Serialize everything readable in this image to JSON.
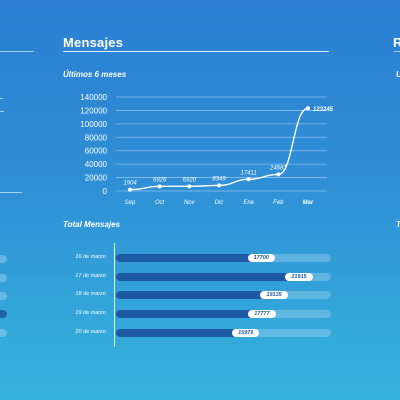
{
  "panel": {
    "title": "Mensajes",
    "chart_subtitle": "Últimos 6 meses",
    "bars_subtitle": "Total Mensajes"
  },
  "right_panel": {
    "title_fragment": "R",
    "subtitle_fragment": "U",
    "bars_fragment": "T"
  },
  "chart_data": [
    {
      "type": "line",
      "title": "Últimos 6 meses",
      "categories": [
        "Sep",
        "Oct",
        "Nov",
        "Dic",
        "Ene",
        "Feb",
        "Mar"
      ],
      "values": [
        1904,
        6926,
        6920,
        8349,
        17411,
        24681,
        123245
      ],
      "value_labels": [
        "1904",
        "6926",
        "6920",
        "8349",
        "17411",
        "24681",
        "123245"
      ],
      "y_ticks": [
        "140000",
        "120000",
        "100000",
        "80000",
        "60000",
        "40000",
        "20000",
        "0"
      ],
      "ylim": [
        0,
        140000
      ],
      "grid": true,
      "highlight_category": "Mar"
    },
    {
      "type": "bar",
      "title": "Total Mensajes",
      "orientation": "horizontal",
      "categories": [
        "16 de marzo",
        "17 de marzo",
        "18 de marzo",
        "19 de marzo",
        "20 de marzo"
      ],
      "values": [
        17700,
        21915,
        19135,
        17777,
        15976
      ],
      "value_labels": [
        "17700",
        "21915",
        "19135",
        "17777",
        "15976"
      ],
      "xlim": [
        0,
        24000
      ]
    }
  ],
  "colors": {
    "bar_fill": "#1d5aa3",
    "value_pill": "#ffffff",
    "line": "#ffffff"
  }
}
